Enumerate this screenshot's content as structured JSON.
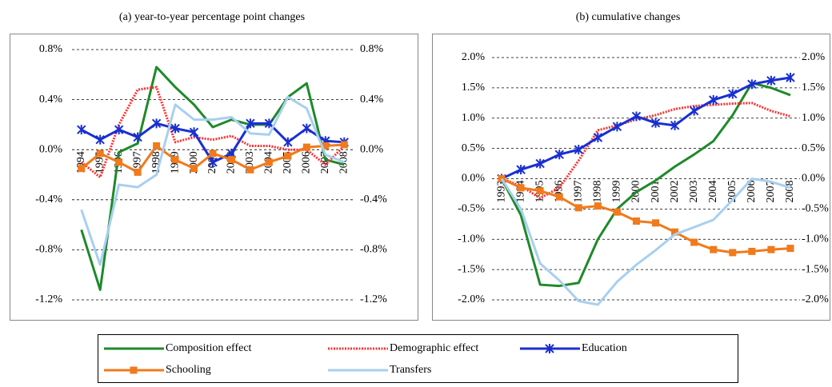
{
  "chart_data": [
    {
      "type": "line",
      "title": "(a) year-to-year percentage point changes",
      "categories": [
        "1994",
        "1995",
        "1996",
        "1997",
        "1998",
        "1999",
        "2000",
        "2001",
        "2002",
        "2003",
        "2004",
        "2005",
        "2006",
        "2007",
        "2008"
      ],
      "ylim": [
        -1.2,
        0.8
      ],
      "yticks": [
        {
          "value": 0.8,
          "label": "0.8%"
        },
        {
          "value": 0.4,
          "label": "0.4%"
        },
        {
          "value": 0,
          "label": "0.0%"
        },
        {
          "value": -0.4,
          "label": "-0.4%"
        },
        {
          "value": -0.8,
          "label": "-0.8%"
        },
        {
          "value": -1.2,
          "label": "-1.2%"
        }
      ],
      "grid": true,
      "series": [
        {
          "name": "Composition effect",
          "color": "#1e8a2a",
          "values": [
            -0.64,
            -1.12,
            -0.02,
            0.05,
            0.66,
            0.5,
            0.36,
            0.18,
            0.24,
            0.2,
            0.2,
            0.42,
            0.53,
            -0.08,
            -0.12
          ]
        },
        {
          "name": "Demographic effect",
          "color": "#ff3030",
          "dash": true,
          "values": [
            -0.1,
            -0.22,
            0.2,
            0.48,
            0.5,
            0.06,
            0.1,
            0.08,
            0.11,
            0.03,
            0.03,
            0.0,
            0.0,
            -0.12,
            0.03
          ]
        },
        {
          "name": "Education",
          "color": "#1a2fd0",
          "marker": "asterisk",
          "values": [
            0.16,
            0.08,
            0.16,
            0.1,
            0.21,
            0.17,
            0.14,
            -0.1,
            -0.03,
            0.21,
            0.21,
            0.06,
            0.17,
            0.07,
            0.06
          ]
        },
        {
          "name": "Schooling",
          "color": "#f07a1c",
          "marker": "square",
          "values": [
            -0.15,
            -0.03,
            -0.1,
            -0.18,
            0.03,
            -0.08,
            -0.15,
            -0.03,
            -0.08,
            -0.16,
            -0.1,
            -0.05,
            0.02,
            0.03,
            0.04
          ]
        },
        {
          "name": "Transfers",
          "color": "#a8cff0",
          "values": [
            -0.48,
            -0.92,
            -0.28,
            -0.3,
            -0.2,
            0.36,
            0.24,
            0.24,
            0.26,
            0.13,
            0.12,
            0.42,
            0.33,
            -0.04,
            -0.1
          ]
        }
      ]
    },
    {
      "type": "line",
      "title": "(b) cumulative changes",
      "categories": [
        "1993",
        "1994",
        "1995",
        "1996",
        "1997",
        "1998",
        "1999",
        "2000",
        "2001",
        "2002",
        "2003",
        "2004",
        "2005",
        "2006",
        "2007",
        "2008"
      ],
      "ylim": [
        -2.0,
        2.0
      ],
      "yticks": [
        {
          "value": 2.0,
          "label": "2.0%"
        },
        {
          "value": 1.5,
          "label": "1.5%"
        },
        {
          "value": 1.0,
          "label": "1.0%"
        },
        {
          "value": 0.5,
          "label": "0.5%"
        },
        {
          "value": 0,
          "label": "0.0%"
        },
        {
          "value": -0.5,
          "label": "-0.5%"
        },
        {
          "value": -1.0,
          "label": "-1.0%"
        },
        {
          "value": -1.5,
          "label": "-1.5%"
        },
        {
          "value": -2.0,
          "label": "-2.0%"
        }
      ],
      "grid": true,
      "series": [
        {
          "name": "Composition effect",
          "color": "#1e8a2a",
          "values": [
            0,
            -0.6,
            -1.75,
            -1.77,
            -1.72,
            -1.0,
            -0.5,
            -0.22,
            -0.03,
            0.2,
            0.4,
            0.62,
            1.05,
            1.58,
            1.5,
            1.38
          ]
        },
        {
          "name": "Demographic effect",
          "color": "#ff3030",
          "dash": true,
          "values": [
            0,
            -0.12,
            -0.32,
            -0.15,
            0.3,
            0.8,
            0.88,
            0.98,
            1.05,
            1.15,
            1.2,
            1.22,
            1.24,
            1.25,
            1.12,
            1.03
          ]
        },
        {
          "name": "Education",
          "color": "#1a2fd0",
          "marker": "asterisk",
          "values": [
            0,
            0.15,
            0.25,
            0.4,
            0.48,
            0.68,
            0.86,
            1.03,
            0.92,
            0.88,
            1.12,
            1.3,
            1.4,
            1.56,
            1.62,
            1.67
          ]
        },
        {
          "name": "Schooling",
          "color": "#f07a1c",
          "marker": "square",
          "values": [
            0,
            -0.15,
            -0.2,
            -0.3,
            -0.48,
            -0.45,
            -0.55,
            -0.7,
            -0.73,
            -0.88,
            -1.05,
            -1.17,
            -1.22,
            -1.2,
            -1.17,
            -1.15
          ]
        },
        {
          "name": "Transfers",
          "color": "#a8cff0",
          "values": [
            0,
            -0.5,
            -1.4,
            -1.68,
            -2.02,
            -2.08,
            -1.7,
            -1.42,
            -1.18,
            -0.92,
            -0.8,
            -0.68,
            -0.35,
            0.0,
            -0.05,
            -0.15
          ]
        }
      ]
    }
  ]
}
